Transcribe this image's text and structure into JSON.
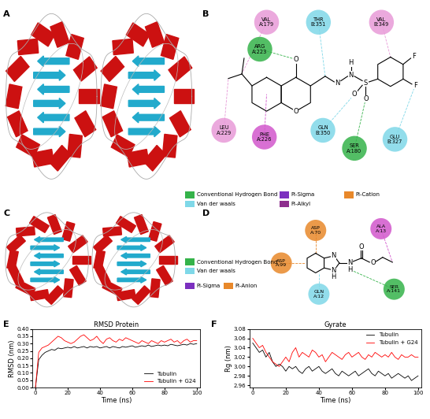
{
  "panel_labels": [
    "A",
    "B",
    "C",
    "D",
    "E",
    "F"
  ],
  "diagrams": {
    "A": {
      "legend": [
        {
          "label": "Conventional Hydrogen Bond",
          "color": "#35b34a"
        },
        {
          "label": "Van der waals",
          "color": "#7fd8e8"
        }
      ]
    },
    "B": {
      "legend": [
        {
          "label": "Pi-Sigma",
          "color": "#7b2fbf"
        },
        {
          "label": "Pi-Alkyl",
          "color": "#8e2f8e"
        },
        {
          "label": "Pi-Cation",
          "color": "#e8882a"
        }
      ],
      "residues": [
        {
          "text": "VAL A:179",
          "color": "#e89ad8"
        },
        {
          "text": "ARG A:223",
          "color": "#35b34a"
        },
        {
          "text": "THR B:351",
          "color": "#7fd8e8"
        },
        {
          "text": "VAL B:349",
          "color": "#e89ad8"
        },
        {
          "text": "LEU A:229",
          "color": "#e89ad8"
        },
        {
          "text": "PHE A:226",
          "color": "#d257cc"
        },
        {
          "text": "GLN B:350",
          "color": "#7fd8e8"
        },
        {
          "text": "SER A:180",
          "color": "#35b34a"
        },
        {
          "text": "GLU B:327",
          "color": "#7fd8e8"
        }
      ],
      "ligand_atoms": [
        "O",
        "O",
        "N",
        "N",
        "H",
        "S",
        "O",
        "O",
        "F",
        "F"
      ]
    },
    "C": {
      "legend": [
        {
          "label": "Conventional Hydrogen Bond",
          "color": "#35b34a"
        },
        {
          "label": "Van der waals",
          "color": "#7fd8e8"
        },
        {
          "label": "Pi-Sigma",
          "color": "#7b2fbf"
        },
        {
          "label": "Pi-Anion",
          "color": "#e8882a"
        }
      ]
    },
    "D": {
      "residues": [
        {
          "text": "ASP A:70",
          "color": "#e8882a"
        },
        {
          "text": "ALA A:13",
          "color": "#d257cc"
        },
        {
          "text": "ASP A:99",
          "color": "#e8882a"
        },
        {
          "text": "GLN A:12",
          "color": "#7fd8e8"
        },
        {
          "text": "SER A:141",
          "color": "#35b34a"
        }
      ],
      "ligand_atoms": [
        "N",
        "N",
        "H",
        "N",
        "H",
        "O",
        "O"
      ]
    }
  },
  "chart_data": [
    {
      "type": "line",
      "title": "RMSD Protein",
      "x_label": "Time (ns)",
      "y_label": "RMSD (nm)",
      "x": [
        0,
        2,
        4,
        6,
        8,
        10,
        12,
        14,
        16,
        18,
        20,
        22,
        24,
        26,
        28,
        30,
        32,
        34,
        36,
        38,
        40,
        42,
        44,
        46,
        48,
        50,
        52,
        54,
        56,
        58,
        60,
        62,
        64,
        66,
        68,
        70,
        72,
        74,
        76,
        78,
        80,
        82,
        84,
        86,
        88,
        90,
        92,
        94,
        96,
        98,
        100
      ],
      "series": [
        {
          "name": "Tubulin",
          "color": "#000000",
          "values": [
            0.0,
            0.19,
            0.22,
            0.24,
            0.25,
            0.26,
            0.255,
            0.27,
            0.265,
            0.27,
            0.275,
            0.27,
            0.28,
            0.27,
            0.275,
            0.28,
            0.27,
            0.28,
            0.275,
            0.28,
            0.27,
            0.275,
            0.28,
            0.27,
            0.28,
            0.275,
            0.27,
            0.28,
            0.275,
            0.28,
            0.285,
            0.275,
            0.28,
            0.285,
            0.28,
            0.29,
            0.28,
            0.285,
            0.29,
            0.285,
            0.29,
            0.285,
            0.295,
            0.29,
            0.285,
            0.29,
            0.295,
            0.29,
            0.3,
            0.295,
            0.3
          ]
        },
        {
          "name": "Tubulin + G24",
          "color": "#ff0000",
          "values": [
            0.0,
            0.24,
            0.27,
            0.28,
            0.29,
            0.31,
            0.33,
            0.35,
            0.34,
            0.32,
            0.31,
            0.3,
            0.31,
            0.33,
            0.35,
            0.36,
            0.34,
            0.32,
            0.33,
            0.35,
            0.32,
            0.3,
            0.33,
            0.34,
            0.32,
            0.31,
            0.33,
            0.32,
            0.34,
            0.33,
            0.32,
            0.31,
            0.3,
            0.32,
            0.31,
            0.3,
            0.32,
            0.31,
            0.3,
            0.32,
            0.31,
            0.32,
            0.33,
            0.31,
            0.32,
            0.3,
            0.32,
            0.33,
            0.31,
            0.32,
            0.32
          ]
        }
      ],
      "xlim": [
        -2,
        102
      ],
      "xticks": [
        0,
        20,
        40,
        60,
        80,
        100
      ],
      "ylim": [
        0,
        0.4
      ],
      "yticks": [
        {
          "value": 0,
          "label": "0.00"
        },
        0.05,
        {
          "value": 0.1,
          "label": "0.10"
        },
        0.15,
        {
          "value": 0.2,
          "label": "0.20"
        },
        0.25,
        {
          "value": 0.3,
          "label": "0.30"
        },
        0.35,
        {
          "value": 0.4,
          "label": "0.40"
        }
      ],
      "legend": "lower right",
      "grid": false
    },
    {
      "type": "line",
      "title": "Gyrate",
      "x_label": "Time (ns)",
      "y_label": "Rg (nm)",
      "x": [
        0,
        2,
        4,
        6,
        8,
        10,
        12,
        14,
        16,
        18,
        20,
        22,
        24,
        26,
        28,
        30,
        32,
        34,
        36,
        38,
        40,
        42,
        44,
        46,
        48,
        50,
        52,
        54,
        56,
        58,
        60,
        62,
        64,
        66,
        68,
        70,
        72,
        74,
        76,
        78,
        80,
        82,
        84,
        86,
        88,
        90,
        92,
        94,
        96,
        98,
        100
      ],
      "series": [
        {
          "name": "Tubulin",
          "color": "#000000",
          "values": [
            3.05,
            3.04,
            3.03,
            3.035,
            3.02,
            3.03,
            3.01,
            3.0,
            3.005,
            3.0,
            2.99,
            3.0,
            2.995,
            3.0,
            2.99,
            2.985,
            2.995,
            3.0,
            2.99,
            2.995,
            3.0,
            2.99,
            2.985,
            2.99,
            2.995,
            2.985,
            2.98,
            2.99,
            2.985,
            2.98,
            2.985,
            2.99,
            2.98,
            2.985,
            2.99,
            2.995,
            2.985,
            2.98,
            2.99,
            2.985,
            2.98,
            2.985,
            2.975,
            2.98,
            2.985,
            2.98,
            2.975,
            2.98,
            2.97,
            2.975,
            2.98
          ]
        },
        {
          "name": "Tubulin + G24",
          "color": "#ff0000",
          "values": [
            3.06,
            3.05,
            3.04,
            3.045,
            3.03,
            3.02,
            3.01,
            3.005,
            3.0,
            3.01,
            3.02,
            3.01,
            3.03,
            3.04,
            3.02,
            3.03,
            3.025,
            3.02,
            3.035,
            3.03,
            3.02,
            3.025,
            3.01,
            3.02,
            3.03,
            3.025,
            3.02,
            3.015,
            3.025,
            3.03,
            3.02,
            3.025,
            3.03,
            3.02,
            3.015,
            3.025,
            3.02,
            3.03,
            3.025,
            3.02,
            3.025,
            3.02,
            3.03,
            3.02,
            3.015,
            3.025,
            3.02,
            3.02,
            3.025,
            3.02,
            3.02
          ]
        }
      ],
      "xlim": [
        -2,
        102
      ],
      "xticks": [
        0,
        20,
        40,
        60,
        80,
        100
      ],
      "ylim": [
        2.955,
        3.08
      ],
      "yticks": [
        2.96,
        2.98,
        {
          "value": 3.0,
          "label": "3.00"
        },
        3.02,
        3.04,
        3.06,
        3.08
      ],
      "legend": "upper right",
      "grid": false
    }
  ]
}
